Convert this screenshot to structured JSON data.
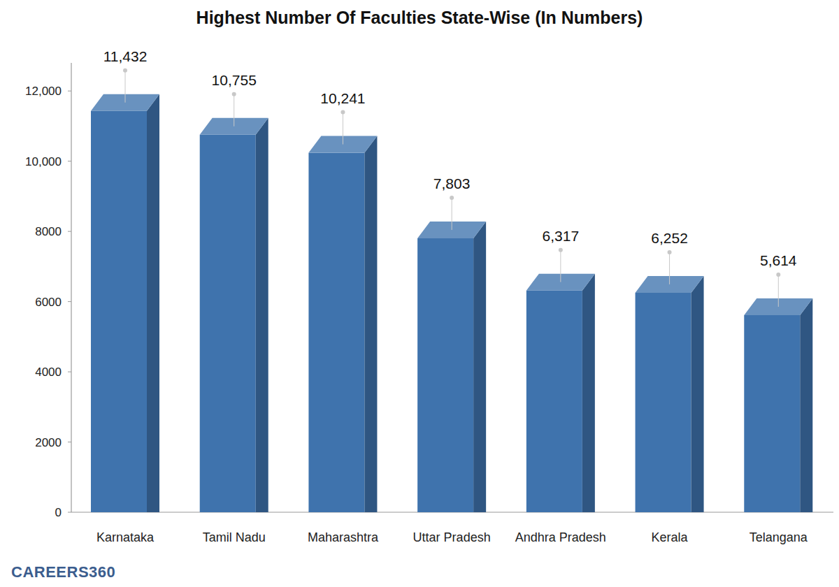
{
  "chart_data": {
    "type": "bar",
    "title": "Highest Number Of Faculties State-Wise (In Numbers)",
    "categories": [
      "Karnataka",
      "Tamil Nadu",
      "Maharashtra",
      "Uttar Pradesh",
      "Andhra Pradesh",
      "Kerala",
      "Telangana"
    ],
    "values": [
      11432,
      10755,
      10241,
      7803,
      6317,
      6252,
      5614
    ],
    "value_labels": [
      "11,432",
      "10,755",
      "10,241",
      "7,803",
      "6,317",
      "6,252",
      "5,614"
    ],
    "color": "#3f73ad",
    "ylim": [
      0,
      12800
    ],
    "yticks": [
      0,
      2000,
      4000,
      6000,
      8000,
      {
        "value": 10000,
        "label": "10,000"
      },
      {
        "value": 12000,
        "label": "12,000"
      }
    ],
    "grid": false,
    "data_labels": true,
    "annotations": [
      "CAREERS360"
    ]
  }
}
